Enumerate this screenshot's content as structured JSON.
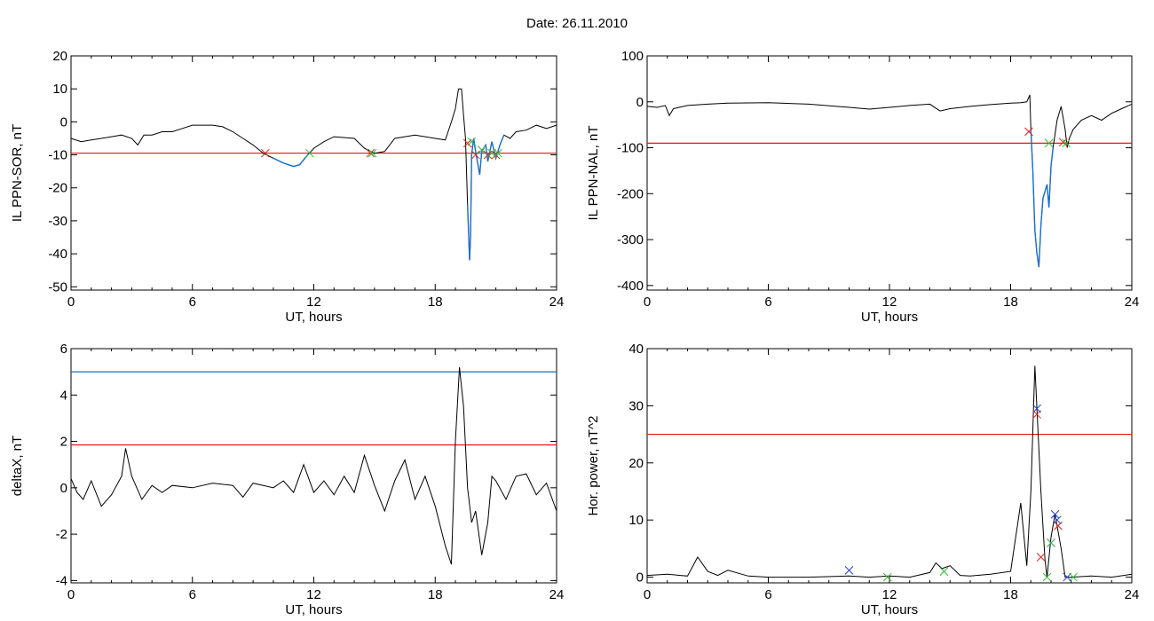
{
  "page": {
    "title": "Date:  26.11.2010"
  },
  "colors": {
    "data": "#000000",
    "threshold_red": "#ee1111",
    "threshold_blue": "#1d6fb8",
    "segment_blue": "#1a6fd1",
    "marker_red": "#dd2222",
    "marker_green": "#33bb33",
    "marker_blue": "#2244cc"
  },
  "chart_data": [
    {
      "type": "line",
      "ylabel": "IL PPN-SOR, nT",
      "xlabel": "UT, hours",
      "xlim": [
        0,
        24
      ],
      "ylim": [
        -51,
        20
      ],
      "xticks": [
        0,
        6,
        12,
        18,
        24
      ],
      "yticks": [
        -50,
        -40,
        -30,
        -20,
        -10,
        0,
        10,
        20
      ],
      "threshold": {
        "value": -9.5,
        "color": "red"
      },
      "series": [
        {
          "points": [
            [
              0,
              -5
            ],
            [
              0.5,
              -6
            ],
            [
              1,
              -5.5
            ],
            [
              1.5,
              -5
            ],
            [
              2,
              -4.5
            ],
            [
              2.5,
              -4
            ],
            [
              3,
              -5
            ],
            [
              3.3,
              -7
            ],
            [
              3.6,
              -4
            ],
            [
              4,
              -4
            ],
            [
              4.5,
              -3
            ],
            [
              5,
              -3
            ],
            [
              5.5,
              -2
            ],
            [
              6,
              -1
            ],
            [
              7,
              -1
            ],
            [
              7.5,
              -1.5
            ],
            [
              8,
              -3
            ],
            [
              8.5,
              -5
            ],
            [
              9,
              -7
            ],
            [
              9.5,
              -9.5
            ],
            [
              10,
              -11
            ],
            [
              10.5,
              -12.5
            ],
            [
              11,
              -13.5
            ],
            [
              11.3,
              -13
            ],
            [
              11.7,
              -10
            ],
            [
              12,
              -8
            ],
            [
              12.5,
              -6
            ],
            [
              13,
              -4.5
            ],
            [
              14,
              -5
            ],
            [
              14.5,
              -8
            ],
            [
              15,
              -9.5
            ],
            [
              15.5,
              -9
            ],
            [
              16,
              -5
            ],
            [
              17,
              -4
            ],
            [
              18,
              -5
            ],
            [
              18.5,
              -5.5
            ],
            [
              18.8,
              0
            ],
            [
              19,
              4
            ],
            [
              19.15,
              10
            ],
            [
              19.3,
              10
            ],
            [
              19.4,
              2
            ],
            [
              19.5,
              -5
            ],
            [
              19.6,
              -25
            ],
            [
              19.7,
              -42
            ],
            [
              19.75,
              -35
            ],
            [
              19.8,
              -10
            ],
            [
              19.9,
              -5
            ],
            [
              20,
              -9
            ],
            [
              20.2,
              -16
            ],
            [
              20.3,
              -9
            ],
            [
              20.5,
              -7
            ],
            [
              20.6,
              -12
            ],
            [
              20.8,
              -6
            ],
            [
              21,
              -11
            ],
            [
              21.2,
              -7
            ],
            [
              21.4,
              -4
            ],
            [
              21.7,
              -5
            ],
            [
              22,
              -3
            ],
            [
              22.5,
              -2.5
            ],
            [
              23,
              -1
            ],
            [
              23.5,
              -2
            ],
            [
              24,
              -1
            ]
          ]
        }
      ],
      "blue_segments": [
        [
          9.6,
          11.8
        ],
        [
          19.55,
          21.4
        ]
      ],
      "markers": [
        {
          "x": 9.6,
          "y": -9.5,
          "color": "red"
        },
        {
          "x": 11.8,
          "y": -9.5,
          "color": "green"
        },
        {
          "x": 14.8,
          "y": -9.5,
          "color": "red"
        },
        {
          "x": 14.9,
          "y": -9.5,
          "color": "green"
        },
        {
          "x": 19.6,
          "y": -6.5,
          "color": "red"
        },
        {
          "x": 19.8,
          "y": -6,
          "color": "green"
        },
        {
          "x": 20.0,
          "y": -10,
          "color": "red"
        },
        {
          "x": 20.3,
          "y": -8.5,
          "color": "green"
        },
        {
          "x": 20.6,
          "y": -10,
          "color": "red"
        },
        {
          "x": 20.8,
          "y": -9.5,
          "color": "green"
        },
        {
          "x": 21.0,
          "y": -10,
          "color": "red"
        },
        {
          "x": 21.1,
          "y": -9.5,
          "color": "green"
        }
      ]
    },
    {
      "type": "line",
      "ylabel": "IL PPN-NAL, nT",
      "xlabel": "UT, hours",
      "xlim": [
        0,
        24
      ],
      "ylim": [
        -410,
        100
      ],
      "xticks": [
        0,
        6,
        12,
        18,
        24
      ],
      "yticks": [
        -400,
        -300,
        -200,
        -100,
        0,
        100
      ],
      "threshold": {
        "value": -90,
        "color": "red"
      },
      "series": [
        {
          "points": [
            [
              0,
              -10
            ],
            [
              0.5,
              -12
            ],
            [
              0.9,
              -8
            ],
            [
              1.1,
              -30
            ],
            [
              1.3,
              -15
            ],
            [
              2,
              -8
            ],
            [
              3,
              -5
            ],
            [
              4,
              -3
            ],
            [
              6,
              -2
            ],
            [
              8,
              -5
            ],
            [
              10,
              -12
            ],
            [
              11,
              -16
            ],
            [
              12,
              -12
            ],
            [
              13,
              -8
            ],
            [
              14,
              -5
            ],
            [
              14.5,
              -20
            ],
            [
              15,
              -15
            ],
            [
              16,
              -10
            ],
            [
              17,
              -6
            ],
            [
              18,
              -3
            ],
            [
              18.5,
              -2
            ],
            [
              18.8,
              0
            ],
            [
              18.95,
              15
            ],
            [
              19.0,
              -60
            ],
            [
              19.1,
              -150
            ],
            [
              19.2,
              -280
            ],
            [
              19.3,
              -330
            ],
            [
              19.4,
              -360
            ],
            [
              19.5,
              -270
            ],
            [
              19.6,
              -210
            ],
            [
              19.8,
              -180
            ],
            [
              19.9,
              -230
            ],
            [
              20.0,
              -140
            ],
            [
              20.1,
              -100
            ],
            [
              20.3,
              -40
            ],
            [
              20.5,
              -10
            ],
            [
              20.7,
              -60
            ],
            [
              20.8,
              -100
            ],
            [
              20.9,
              -80
            ],
            [
              21.1,
              -60
            ],
            [
              21.5,
              -40
            ],
            [
              22,
              -30
            ],
            [
              22.5,
              -40
            ],
            [
              23,
              -25
            ],
            [
              23.5,
              -15
            ],
            [
              24,
              -5
            ]
          ]
        }
      ],
      "blue_segments": [
        [
          19.0,
          20.1
        ]
      ],
      "markers": [
        {
          "x": 18.9,
          "y": -65,
          "color": "red"
        },
        {
          "x": 19.9,
          "y": -90,
          "color": "green"
        },
        {
          "x": 20.6,
          "y": -88,
          "color": "red"
        },
        {
          "x": 20.75,
          "y": -90,
          "color": "green"
        }
      ]
    },
    {
      "type": "line",
      "ylabel": "deltaX, nT",
      "xlabel": "UT, hours",
      "xlim": [
        0,
        24
      ],
      "ylim": [
        -4.1,
        6
      ],
      "xticks": [
        0,
        6,
        12,
        18,
        24
      ],
      "yticks": [
        -4,
        -2,
        0,
        2,
        4,
        6
      ],
      "thresholds": [
        {
          "value": 5.0,
          "color": "blue"
        },
        {
          "value": 1.85,
          "color": "red"
        }
      ],
      "series": [
        {
          "points": [
            [
              0,
              0.4
            ],
            [
              0.3,
              -0.2
            ],
            [
              0.6,
              -0.5
            ],
            [
              1,
              0.3
            ],
            [
              1.5,
              -0.8
            ],
            [
              2,
              -0.3
            ],
            [
              2.5,
              0.5
            ],
            [
              2.7,
              1.7
            ],
            [
              3,
              0.5
            ],
            [
              3.5,
              -0.5
            ],
            [
              4,
              0.1
            ],
            [
              4.5,
              -0.2
            ],
            [
              5,
              0.1
            ],
            [
              6,
              0
            ],
            [
              7,
              0.2
            ],
            [
              8,
              0.1
            ],
            [
              8.5,
              -0.4
            ],
            [
              9,
              0.2
            ],
            [
              10,
              0
            ],
            [
              10.5,
              0.3
            ],
            [
              11,
              -0.2
            ],
            [
              11.5,
              1.0
            ],
            [
              12,
              -0.2
            ],
            [
              12.5,
              0.3
            ],
            [
              13,
              -0.3
            ],
            [
              13.5,
              0.5
            ],
            [
              14,
              -0.2
            ],
            [
              14.5,
              1.4
            ],
            [
              15,
              0.1
            ],
            [
              15.5,
              -1.0
            ],
            [
              16,
              0.3
            ],
            [
              16.5,
              1.2
            ],
            [
              17,
              -0.5
            ],
            [
              17.5,
              0.5
            ],
            [
              18,
              -0.8
            ],
            [
              18.5,
              -2.5
            ],
            [
              18.8,
              -3.3
            ],
            [
              19.0,
              2.0
            ],
            [
              19.2,
              5.2
            ],
            [
              19.4,
              3.5
            ],
            [
              19.6,
              0.0
            ],
            [
              19.8,
              -1.5
            ],
            [
              20,
              -1.0
            ],
            [
              20.3,
              -2.9
            ],
            [
              20.6,
              -1.5
            ],
            [
              20.8,
              0.5
            ],
            [
              21,
              0.3
            ],
            [
              21.5,
              -0.5
            ],
            [
              22,
              0.5
            ],
            [
              22.5,
              0.6
            ],
            [
              23,
              -0.3
            ],
            [
              23.5,
              0.2
            ],
            [
              24,
              -1.0
            ]
          ]
        }
      ]
    },
    {
      "type": "line",
      "ylabel": "Hor. power, nT^2",
      "xlabel": "UT, hours",
      "xlim": [
        0,
        24
      ],
      "ylim": [
        -1,
        40
      ],
      "xticks": [
        0,
        6,
        12,
        18,
        24
      ],
      "yticks": [
        0,
        10,
        20,
        30,
        40
      ],
      "threshold": {
        "value": 25,
        "color": "red"
      },
      "series": [
        {
          "points": [
            [
              0,
              0.3
            ],
            [
              1,
              0.5
            ],
            [
              2,
              0.2
            ],
            [
              2.5,
              3.5
            ],
            [
              3,
              1
            ],
            [
              3.5,
              0.3
            ],
            [
              4,
              1.2
            ],
            [
              5,
              0.2
            ],
            [
              6,
              0
            ],
            [
              8,
              0
            ],
            [
              10,
              0.2
            ],
            [
              11,
              0
            ],
            [
              12,
              0.2
            ],
            [
              13,
              0
            ],
            [
              14,
              0.8
            ],
            [
              14.3,
              2.5
            ],
            [
              14.6,
              1.5
            ],
            [
              15,
              2
            ],
            [
              15.5,
              0.3
            ],
            [
              16,
              0.2
            ],
            [
              17,
              0.5
            ],
            [
              18,
              1
            ],
            [
              18.5,
              13
            ],
            [
              18.8,
              2
            ],
            [
              19.0,
              15
            ],
            [
              19.2,
              37
            ],
            [
              19.5,
              15
            ],
            [
              19.7,
              3
            ],
            [
              19.8,
              0
            ],
            [
              20,
              7
            ],
            [
              20.2,
              11
            ],
            [
              20.5,
              5
            ],
            [
              20.7,
              0
            ],
            [
              21,
              0
            ],
            [
              22,
              0.2
            ],
            [
              23,
              0
            ],
            [
              24,
              0.5
            ]
          ]
        }
      ],
      "markers": [
        {
          "x": 10.0,
          "y": 1.2,
          "color": "blue"
        },
        {
          "x": 11.9,
          "y": 0,
          "color": "green"
        },
        {
          "x": 14.7,
          "y": 1.0,
          "color": "green"
        },
        {
          "x": 19.3,
          "y": 29.5,
          "color": "blue"
        },
        {
          "x": 19.3,
          "y": 28.5,
          "color": "red"
        },
        {
          "x": 19.5,
          "y": 3.5,
          "color": "red"
        },
        {
          "x": 19.8,
          "y": 0,
          "color": "green"
        },
        {
          "x": 20.0,
          "y": 6,
          "color": "blue"
        },
        {
          "x": 20.0,
          "y": 6,
          "color": "green"
        },
        {
          "x": 20.2,
          "y": 11,
          "color": "blue"
        },
        {
          "x": 20.35,
          "y": 9,
          "color": "red"
        },
        {
          "x": 20.3,
          "y": 10,
          "color": "blue"
        },
        {
          "x": 20.8,
          "y": 0,
          "color": "blue"
        },
        {
          "x": 21.1,
          "y": 0,
          "color": "green"
        }
      ]
    }
  ]
}
